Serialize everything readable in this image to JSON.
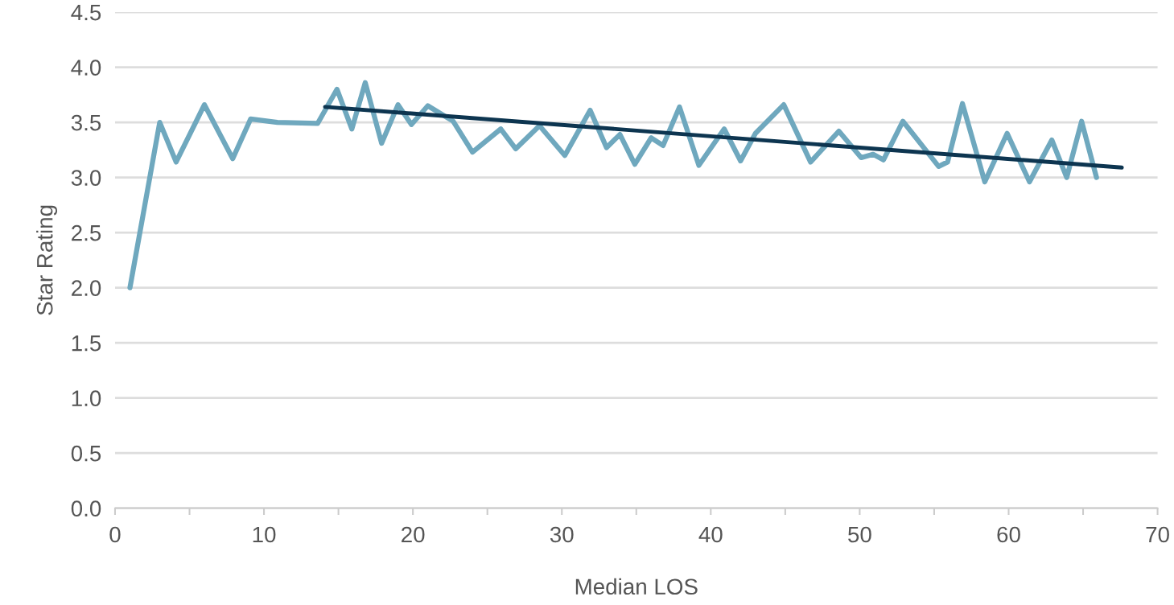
{
  "chart_data": {
    "type": "line",
    "xlabel": "Median LOS",
    "ylabel": "Star Rating",
    "xlim": [
      0,
      70
    ],
    "xticks": [
      0,
      {
        "value": 5,
        "label": null
      },
      10,
      {
        "value": 15,
        "label": null
      },
      20,
      {
        "value": 25,
        "label": null
      },
      30,
      {
        "value": 35,
        "label": null
      },
      40,
      {
        "value": 45,
        "label": null
      },
      50,
      {
        "value": 55,
        "label": null
      },
      60,
      {
        "value": 65,
        "label": null
      },
      70
    ],
    "ylim": [
      0,
      4.5
    ],
    "yticks": [
      {
        "value": 0,
        "label": "0.0"
      },
      {
        "value": 0.5,
        "label": "0.5"
      },
      {
        "value": 1,
        "label": "1.0"
      },
      {
        "value": 1.5,
        "label": "1.5"
      },
      {
        "value": 2,
        "label": "2.0"
      },
      {
        "value": 2.5,
        "label": "2.5"
      },
      {
        "value": 3,
        "label": "3.0"
      },
      {
        "value": 3.5,
        "label": "3.5"
      },
      {
        "value": 4,
        "label": "4.0"
      },
      {
        "value": 4.5,
        "label": "4.5"
      }
    ],
    "grid": "y",
    "marker": "none",
    "line_style": "solid",
    "series": [
      {
        "color": "#6fa8be",
        "x": [
          1.0,
          3.0,
          4.1,
          6.0,
          7.9,
          9.1,
          10.9,
          13.6,
          14.9,
          15.9,
          16.8,
          17.9,
          19.0,
          19.9,
          21.0,
          22.7,
          24.0,
          25.9,
          26.9,
          28.5,
          30.2,
          31.9,
          33.0,
          33.9,
          34.9,
          36.0,
          36.8,
          37.9,
          39.2,
          40.9,
          42.0,
          43.0,
          44.9,
          46.7,
          48.6,
          50.1,
          50.9,
          51.6,
          52.9,
          55.3,
          55.9,
          56.9,
          58.4,
          59.9,
          61.4,
          62.9,
          63.9,
          64.9,
          65.9
        ],
        "values": [
          2.0,
          3.5,
          3.14,
          3.66,
          3.17,
          3.53,
          3.5,
          3.49,
          3.8,
          3.44,
          3.86,
          3.31,
          3.66,
          3.48,
          3.65,
          3.51,
          3.23,
          3.44,
          3.26,
          3.47,
          3.2,
          3.61,
          3.27,
          3.39,
          3.12,
          3.36,
          3.29,
          3.64,
          3.11,
          3.44,
          3.15,
          3.4,
          3.66,
          3.14,
          3.42,
          3.18,
          3.21,
          3.16,
          3.51,
          3.1,
          3.14,
          3.67,
          2.96,
          3.4,
          2.96,
          3.34,
          3.0,
          3.51,
          3.0
        ]
      },
      {
        "type": "line",
        "color": "#0d3550",
        "x": [
          14.1,
          67.6
        ],
        "values": [
          3.64,
          3.09
        ]
      }
    ]
  }
}
